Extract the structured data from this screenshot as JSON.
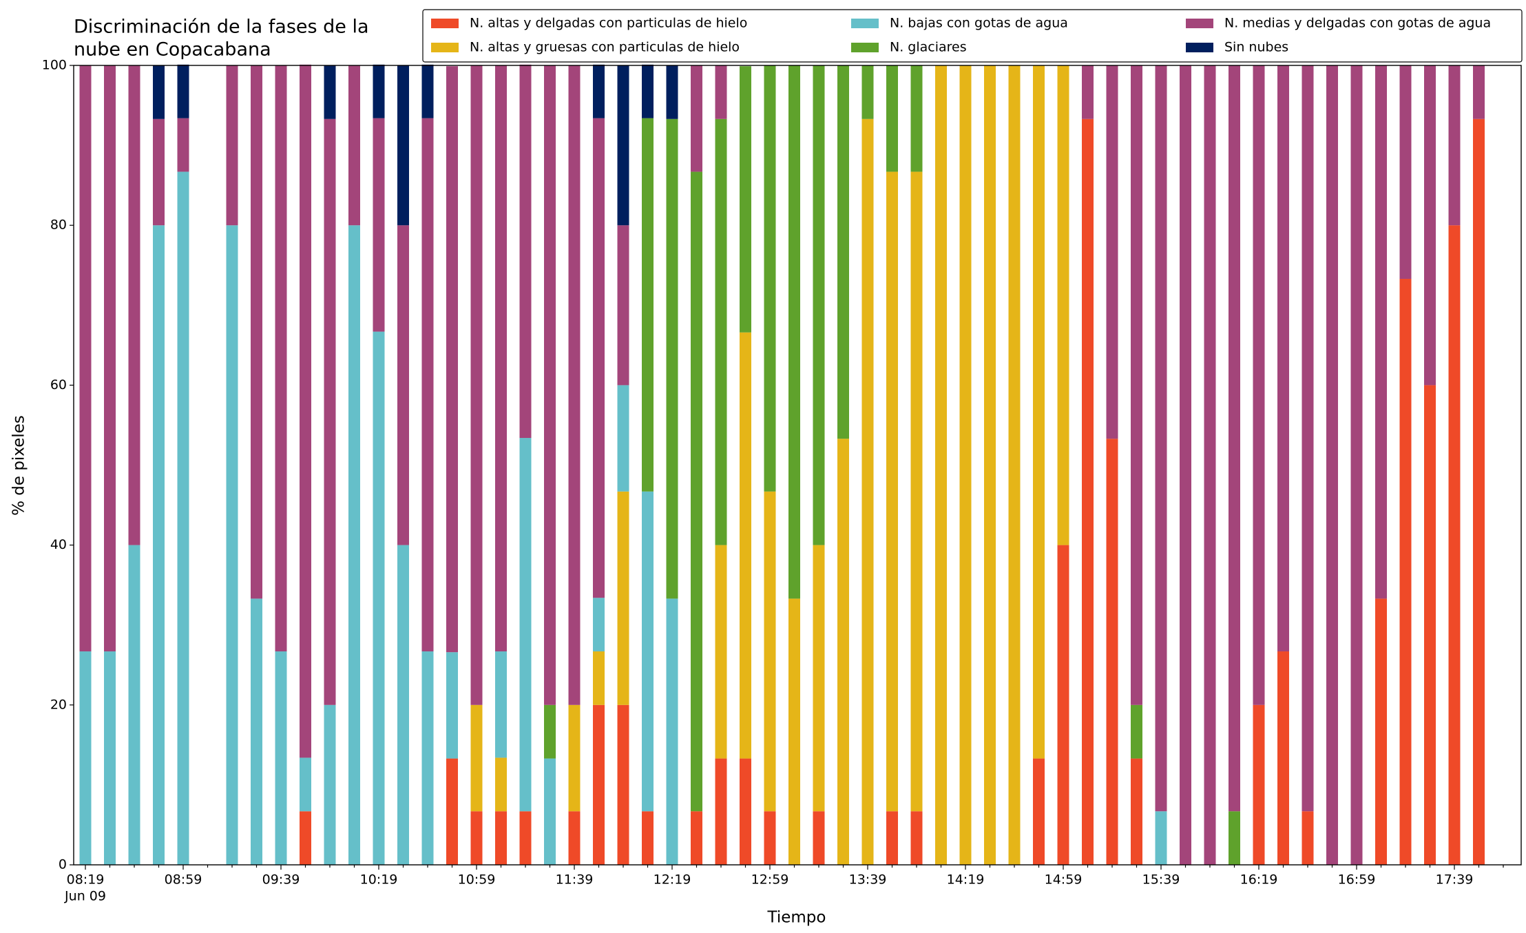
{
  "chart_data": {
    "type": "stacked_bar",
    "title": [
      "Discriminación de la fases de la",
      "nube en Copacabana"
    ],
    "xlabel": "Tiempo",
    "ylabel": "% de pixeles",
    "date_label": "Jun 09",
    "categories": [
      "08:19",
      null,
      null,
      null,
      "08:59",
      null,
      null,
      null,
      "09:39",
      null,
      null,
      null,
      "10:19",
      null,
      null,
      null,
      "10:59",
      null,
      null,
      null,
      "11:39",
      null,
      null,
      null,
      "12:19",
      null,
      null,
      null,
      "12:59",
      null,
      null,
      null,
      "13:39",
      null,
      null,
      null,
      "14:19",
      null,
      null,
      null,
      "14:59",
      null,
      null,
      null,
      "15:39",
      null,
      null,
      null,
      "16:19",
      null,
      null,
      null,
      "16:59",
      null,
      null,
      null,
      "17:39",
      null
    ],
    "series": [
      {
        "name": "N. altas y delgadas con particulas de hielo",
        "color": "#ef4a28",
        "values": [
          0,
          0,
          0,
          0,
          0,
          null,
          0,
          0,
          0,
          6.7,
          0,
          0,
          0,
          0,
          0,
          13.3,
          6.7,
          6.7,
          6.7,
          0,
          6.7,
          20,
          20,
          6.7,
          0,
          6.7,
          13.3,
          13.3,
          6.7,
          0,
          6.7,
          0,
          0,
          6.7,
          6.7,
          0,
          0,
          0,
          0,
          13.3,
          40,
          93.3,
          53.3,
          13.3,
          0,
          0,
          0,
          0,
          20,
          26.7,
          6.7,
          0,
          0,
          33.3,
          73.3,
          60,
          80,
          93.3
        ]
      },
      {
        "name": "N. altas y gruesas con particulas de hielo",
        "color": "#e5b518",
        "values": [
          0,
          0,
          0,
          0,
          0,
          null,
          0,
          0,
          0,
          0,
          0,
          0,
          0,
          0,
          0,
          0,
          13.3,
          6.7,
          0,
          0,
          13.3,
          6.7,
          26.7,
          0,
          0,
          0,
          26.7,
          53.3,
          40,
          33.3,
          33.3,
          53.3,
          93.3,
          80,
          80,
          100,
          100,
          100,
          100,
          86.7,
          60,
          0,
          0,
          0,
          0,
          0,
          0,
          0,
          0,
          0,
          0,
          0,
          0,
          0,
          0,
          0,
          0,
          0
        ]
      },
      {
        "name": "N. bajas con gotas de agua",
        "color": "#65bfc9",
        "values": [
          26.7,
          26.7,
          40,
          80,
          86.7,
          null,
          80,
          33.3,
          26.7,
          6.7,
          20,
          80,
          66.7,
          40,
          26.7,
          13.3,
          0,
          13.3,
          46.7,
          13.3,
          0,
          6.7,
          13.3,
          40,
          33.3,
          0,
          0,
          0,
          0,
          0,
          0,
          0,
          0,
          0,
          0,
          0,
          0,
          0,
          0,
          0,
          0,
          0,
          0,
          0,
          6.7,
          0,
          0,
          0,
          0,
          0,
          0,
          0,
          0,
          0,
          0,
          0,
          0,
          0
        ]
      },
      {
        "name": "N. glaciares",
        "color": "#5fa22c",
        "values": [
          0,
          0,
          0,
          0,
          0,
          null,
          0,
          0,
          0,
          0,
          0,
          0,
          0,
          0,
          0,
          0,
          0,
          0,
          0,
          6.7,
          0,
          0,
          0,
          46.7,
          60,
          80,
          53.3,
          33.3,
          53.3,
          66.7,
          60,
          46.7,
          6.7,
          13.3,
          13.3,
          0,
          0,
          0,
          0,
          0,
          0,
          0,
          0,
          6.7,
          0,
          0,
          0,
          6.7,
          0,
          0,
          0,
          0,
          0,
          0,
          0,
          0,
          0,
          0
        ]
      },
      {
        "name": "N. medias y delgadas con gotas de agua",
        "color": "#a3457a",
        "values": [
          73.3,
          73.3,
          60,
          13.3,
          6.7,
          null,
          20,
          66.7,
          73.3,
          86.7,
          73.3,
          20,
          26.7,
          40,
          66.7,
          73.3,
          80,
          73.3,
          46.7,
          80,
          80,
          60,
          20,
          0,
          0,
          13.3,
          6.7,
          0,
          0,
          0,
          0,
          0,
          0,
          0,
          0,
          0,
          0,
          0,
          0,
          0,
          0,
          6.7,
          46.7,
          80,
          93.3,
          100,
          100,
          93.3,
          80,
          73.3,
          93.3,
          100,
          100,
          66.7,
          26.7,
          40,
          20,
          6.7
        ]
      },
      {
        "name": "Sin nubes",
        "color": "#001f5e",
        "values": [
          0,
          0,
          0,
          6.7,
          6.7,
          null,
          0,
          0,
          0,
          0,
          6.7,
          0,
          6.7,
          20,
          6.7,
          0,
          0,
          0,
          0,
          0,
          0,
          6.7,
          20,
          6.7,
          6.7,
          0,
          0,
          0,
          0,
          0,
          0,
          0,
          0,
          0,
          0,
          0,
          0,
          0,
          0,
          0,
          0,
          0,
          0,
          0,
          0,
          0,
          0,
          0,
          0,
          0,
          0,
          0,
          0,
          0,
          0,
          0,
          0,
          0
        ]
      }
    ],
    "ylim": [
      0,
      100
    ],
    "yticks": [
      0,
      20,
      40,
      60,
      80,
      100
    ],
    "grid": false
  }
}
